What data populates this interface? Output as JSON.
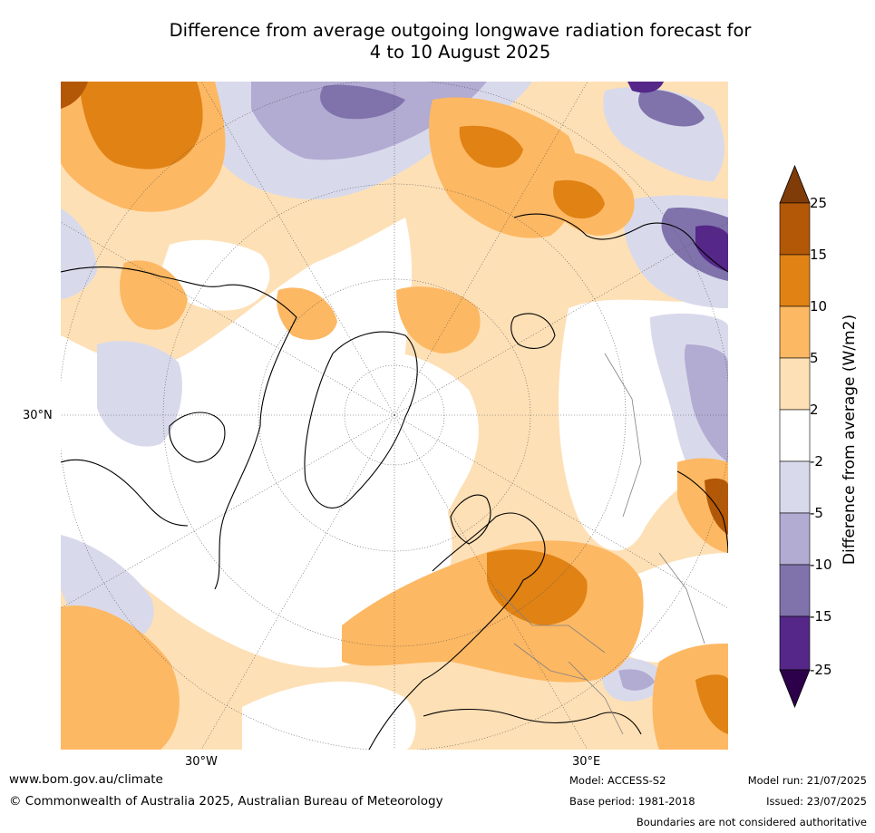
{
  "title_line1": "Difference from average outgoing longwave radiation forecast for",
  "title_line2": "4 to 10 August 2025",
  "map": {
    "lat_label": "30°N",
    "lon_label_west": "30°W",
    "lon_label_east": "30°E",
    "projection": "north-polar-stereographic",
    "region": "Northern Hemisphere (Europe, North Atlantic, Arctic)"
  },
  "colorbar": {
    "label": "Difference from average (W/m2)",
    "ticks": [
      "25",
      "15",
      "10",
      "5",
      "2",
      "-2",
      "-5",
      "-10",
      "-15",
      "-25"
    ],
    "bins": [
      {
        "range": ">25",
        "color": "#7f3b08"
      },
      {
        "range": "15 to 25",
        "color": "#b35806"
      },
      {
        "range": "10 to 15",
        "color": "#e08214"
      },
      {
        "range": "5 to 10",
        "color": "#fdb863"
      },
      {
        "range": "2 to 5",
        "color": "#fee0b6"
      },
      {
        "range": "-2 to 2",
        "color": "#ffffff"
      },
      {
        "range": "-5 to -2",
        "color": "#d8daeb"
      },
      {
        "range": "-10 to -5",
        "color": "#b2abd2"
      },
      {
        "range": "-15 to -10",
        "color": "#8073ac"
      },
      {
        "range": "-25 to -15",
        "color": "#542788"
      },
      {
        "range": "<-25",
        "color": "#2d004b"
      }
    ]
  },
  "footer": {
    "website": "www.bom.gov.au/climate",
    "copyright": "© Commonwealth of Australia 2025, Australian Bureau of Meteorology",
    "model": "Model: ACCESS-S2",
    "base_period": "Base period: 1981-2018",
    "model_run": "Model run: 21/07/2025",
    "issued": "Issued: 23/07/2025",
    "disclaimer": "Boundaries are not considered authoritative"
  }
}
